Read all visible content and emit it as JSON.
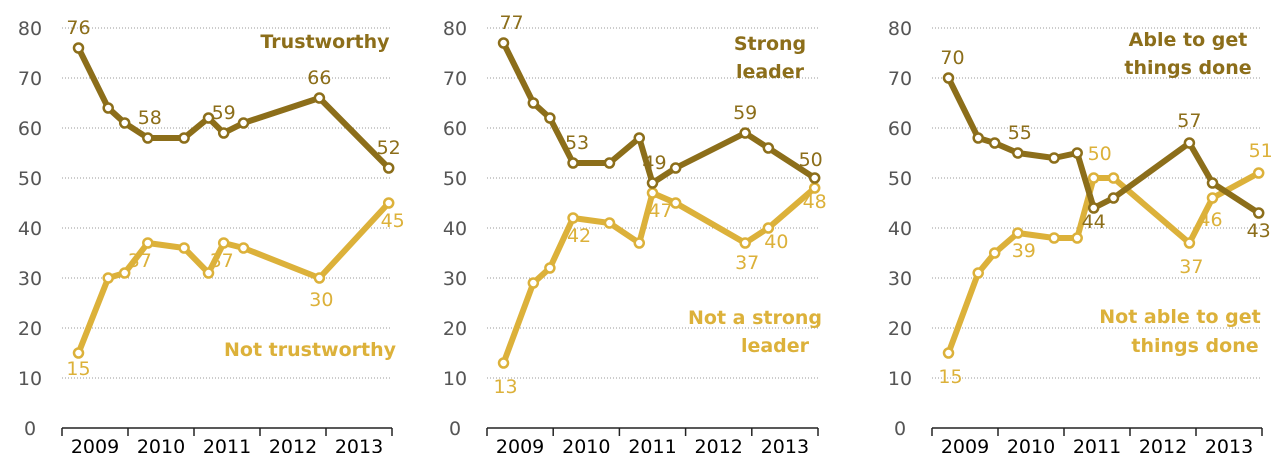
{
  "colors": {
    "dark": "#8c6e1a",
    "light": "#dcb13a",
    "grid": "#9a9a9a",
    "axis": "#222222"
  },
  "x_ticks": [
    "2009",
    "2010",
    "2011",
    "2012",
    "2013"
  ],
  "y_ticks": [
    "0",
    "10",
    "20",
    "30",
    "40",
    "50",
    "60",
    "70",
    "80"
  ],
  "chart_data": [
    {
      "type": "line",
      "ylim": [
        0,
        80
      ],
      "categories": [
        "2009",
        "2010",
        "2011",
        "2012",
        "2013"
      ],
      "series": [
        {
          "name": "Trustworthy",
          "points": [
            [
              2008.75,
              76
            ],
            [
              2009.2,
              64
            ],
            [
              2009.45,
              61
            ],
            [
              2009.8,
              58
            ],
            [
              2010.35,
              58
            ],
            [
              2010.72,
              62
            ],
            [
              2010.95,
              59
            ],
            [
              2011.25,
              61
            ],
            [
              2012.4,
              66
            ],
            [
              2013.45,
              52
            ]
          ],
          "labels": [
            {
              "i": 0,
              "text": "76"
            },
            {
              "i": 3,
              "text": "58"
            },
            {
              "i": 6,
              "text": "59"
            },
            {
              "i": 8,
              "text": "66"
            },
            {
              "i": 9,
              "text": "52"
            }
          ]
        },
        {
          "name": "Not trustworthy",
          "points": [
            [
              2008.75,
              15
            ],
            [
              2009.2,
              30
            ],
            [
              2009.45,
              31
            ],
            [
              2009.8,
              37
            ],
            [
              2010.35,
              36
            ],
            [
              2010.72,
              31
            ],
            [
              2010.95,
              37
            ],
            [
              2011.25,
              36
            ],
            [
              2012.4,
              30
            ],
            [
              2013.45,
              45
            ]
          ],
          "labels": [
            {
              "i": 0,
              "text": "15"
            },
            {
              "i": 3,
              "text": "37"
            },
            {
              "i": 6,
              "text": "37"
            },
            {
              "i": 8,
              "text": "30"
            },
            {
              "i": 9,
              "text": "45"
            }
          ]
        }
      ]
    },
    {
      "type": "line",
      "ylim": [
        0,
        80
      ],
      "categories": [
        "2009",
        "2010",
        "2011",
        "2012",
        "2013"
      ],
      "series": [
        {
          "name": "Strong leader",
          "points": [
            [
              2008.75,
              77
            ],
            [
              2009.2,
              65
            ],
            [
              2009.45,
              62
            ],
            [
              2009.8,
              53
            ],
            [
              2010.35,
              53
            ],
            [
              2010.8,
              58
            ],
            [
              2011.0,
              49
            ],
            [
              2011.35,
              52
            ],
            [
              2012.4,
              59
            ],
            [
              2012.75,
              56
            ],
            [
              2013.45,
              50
            ]
          ],
          "labels": [
            {
              "i": 0,
              "text": "77"
            },
            {
              "i": 3,
              "text": "53"
            },
            {
              "i": 6,
              "text": "49"
            },
            {
              "i": 8,
              "text": "59"
            },
            {
              "i": 10,
              "text": "50"
            }
          ]
        },
        {
          "name": "Not a strong leader",
          "points": [
            [
              2008.75,
              13
            ],
            [
              2009.2,
              29
            ],
            [
              2009.45,
              32
            ],
            [
              2009.8,
              42
            ],
            [
              2010.35,
              41
            ],
            [
              2010.8,
              37
            ],
            [
              2011.0,
              47
            ],
            [
              2011.35,
              45
            ],
            [
              2012.4,
              37
            ],
            [
              2012.75,
              40
            ],
            [
              2013.45,
              48
            ]
          ],
          "labels": [
            {
              "i": 0,
              "text": "13"
            },
            {
              "i": 3,
              "text": "42"
            },
            {
              "i": 6,
              "text": "47"
            },
            {
              "i": 8,
              "text": "37"
            },
            {
              "i": 9,
              "text": "40"
            },
            {
              "i": 10,
              "text": "48"
            }
          ]
        }
      ]
    },
    {
      "type": "line",
      "ylim": [
        0,
        80
      ],
      "categories": [
        "2009",
        "2010",
        "2011",
        "2012",
        "2013"
      ],
      "series": [
        {
          "name": "Able to get things done",
          "points": [
            [
              2008.75,
              70
            ],
            [
              2009.2,
              58
            ],
            [
              2009.45,
              57
            ],
            [
              2009.8,
              55
            ],
            [
              2010.35,
              54
            ],
            [
              2010.7,
              55
            ],
            [
              2010.95,
              44
            ],
            [
              2011.25,
              46
            ],
            [
              2012.4,
              57
            ],
            [
              2012.75,
              49
            ],
            [
              2013.45,
              43
            ]
          ],
          "labels": [
            {
              "i": 0,
              "text": "70"
            },
            {
              "i": 3,
              "text": "55"
            },
            {
              "i": 6,
              "text": "44"
            },
            {
              "i": 8,
              "text": "57"
            },
            {
              "i": 10,
              "text": "43"
            }
          ]
        },
        {
          "name": "Not able to get things done",
          "points": [
            [
              2008.75,
              15
            ],
            [
              2009.2,
              31
            ],
            [
              2009.45,
              35
            ],
            [
              2009.8,
              39
            ],
            [
              2010.35,
              38
            ],
            [
              2010.7,
              38
            ],
            [
              2010.95,
              50
            ],
            [
              2011.25,
              50
            ],
            [
              2012.4,
              37
            ],
            [
              2012.75,
              46
            ],
            [
              2013.45,
              51
            ]
          ],
          "labels": [
            {
              "i": 0,
              "text": "15"
            },
            {
              "i": 3,
              "text": "39"
            },
            {
              "i": 6,
              "text": "50"
            },
            {
              "i": 8,
              "text": "37"
            },
            {
              "i": 9,
              "text": "46"
            },
            {
              "i": 10,
              "text": "51"
            }
          ]
        }
      ]
    }
  ],
  "series_titles": [
    {
      "dark": [
        "Trustworthy"
      ],
      "light": [
        "Not trustworthy"
      ]
    },
    {
      "dark": [
        "Strong",
        "leader"
      ],
      "light": [
        "Not a strong",
        "leader"
      ]
    },
    {
      "dark": [
        "Able to get",
        "things done"
      ],
      "light": [
        "Not able to get",
        "things done"
      ]
    }
  ]
}
